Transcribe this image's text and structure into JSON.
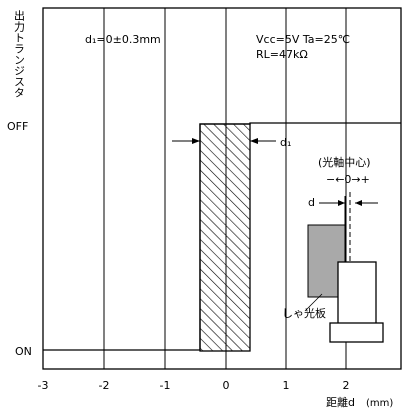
{
  "y_axis_label": "出力トランジスタ",
  "y_state_off": "OFF",
  "y_state_on": "ON",
  "x_axis_label": "距離d",
  "x_axis_unit": "(mm)",
  "x_ticks": [
    "-3",
    "-2",
    "-1",
    "0",
    "1",
    "2"
  ],
  "tolerance_note": "d₁=0±0.3mm",
  "conditions_line1": "Vcc=5V  Ta=25℃",
  "conditions_line2": "RL=47kΩ",
  "d1_label": "d₁",
  "optical_axis_center": "(光軸中心)",
  "axis_sign_label": "−←0→+",
  "d_label": "d",
  "shield_label": "しゃ光板",
  "colors": {
    "grid": "#000000",
    "shield_fill": "#a9a9a9",
    "hatch": "#000000"
  }
}
